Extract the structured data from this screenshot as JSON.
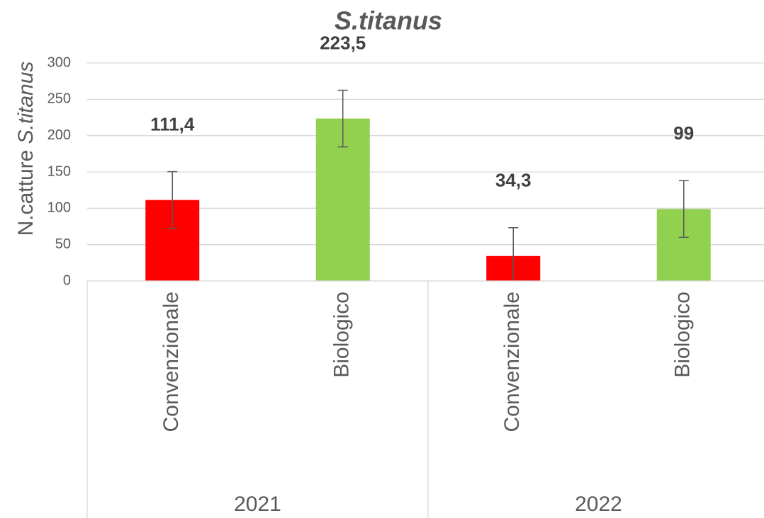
{
  "chart_data": {
    "type": "bar",
    "title": "S.titanus",
    "y_label": "N.catture",
    "y_label_italic": "S.titanus",
    "categories": [
      "Convenzionale",
      "Biologico",
      "Convenzionale",
      "Biologico"
    ],
    "groups": [
      "2021",
      "2022"
    ],
    "values": [
      111.4,
      223.5,
      34.3,
      99
    ],
    "value_labels": [
      "111,4",
      "223,5",
      "34,3",
      "99"
    ],
    "errors": [
      39,
      39,
      39,
      39
    ],
    "colors": [
      "#ff0000",
      "#92d050",
      "#ff0000",
      "#92d050"
    ],
    "ylim": [
      0,
      300
    ],
    "yticks": [
      0,
      50,
      100,
      150,
      200,
      250,
      300
    ],
    "grid": true
  }
}
